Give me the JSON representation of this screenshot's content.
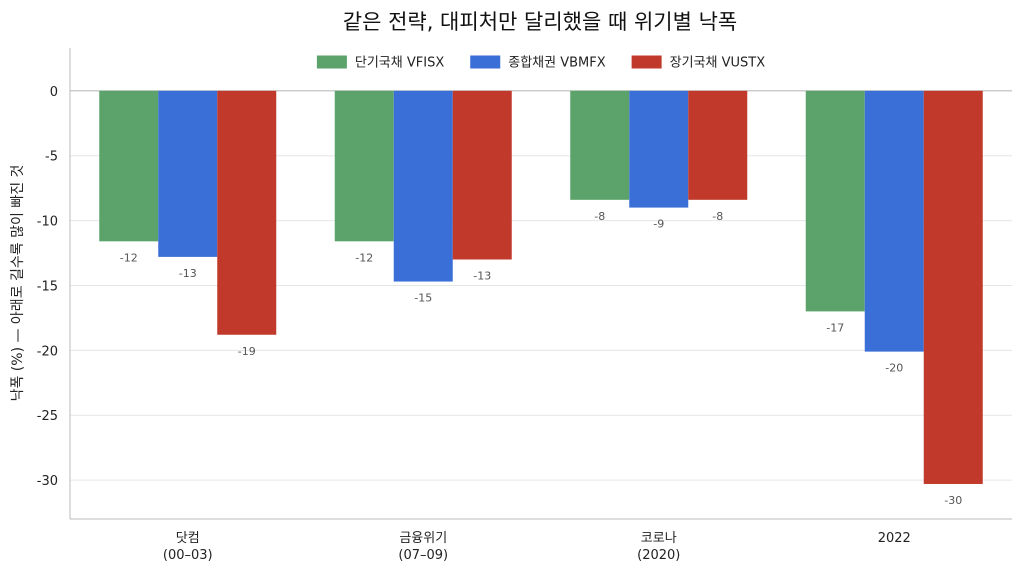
{
  "chart_data": {
    "type": "bar",
    "title": "같은 전략, 대피처만 달리했을 때 위기별 낙폭",
    "ylabel": "낙폭 (%)  — 아래로 길수록 많이 빠진 것",
    "xlabel": "",
    "categories": [
      [
        "닷컴",
        "(00–03)"
      ],
      [
        "금융위기",
        "(07–09)"
      ],
      [
        "코로나",
        "(2020)"
      ],
      [
        "2022"
      ]
    ],
    "series": [
      {
        "name": "단기국채 VFISX",
        "color": "#5ba36b",
        "values": [
          -11.6,
          -11.6,
          -8.4,
          -17.0
        ],
        "labels": [
          "-12",
          "-12",
          "-8",
          "-17"
        ]
      },
      {
        "name": "종합채권 VBMFX",
        "color": "#3b6fd8",
        "values": [
          -12.8,
          -14.7,
          -9.0,
          -20.1
        ],
        "labels": [
          "-13",
          "-15",
          "-9",
          "-20"
        ]
      },
      {
        "name": "장기국채 VUSTX",
        "color": "#c0392b",
        "values": [
          -18.8,
          -13.0,
          -8.4,
          -30.3
        ],
        "labels": [
          "-19",
          "-13",
          "-8",
          "-30"
        ]
      }
    ],
    "ylim": [
      -33,
      3.3
    ],
    "yticks": [
      0,
      -5,
      -10,
      -15,
      -20,
      -25,
      -30
    ],
    "grid": "horizontal",
    "legend": "top-center"
  }
}
